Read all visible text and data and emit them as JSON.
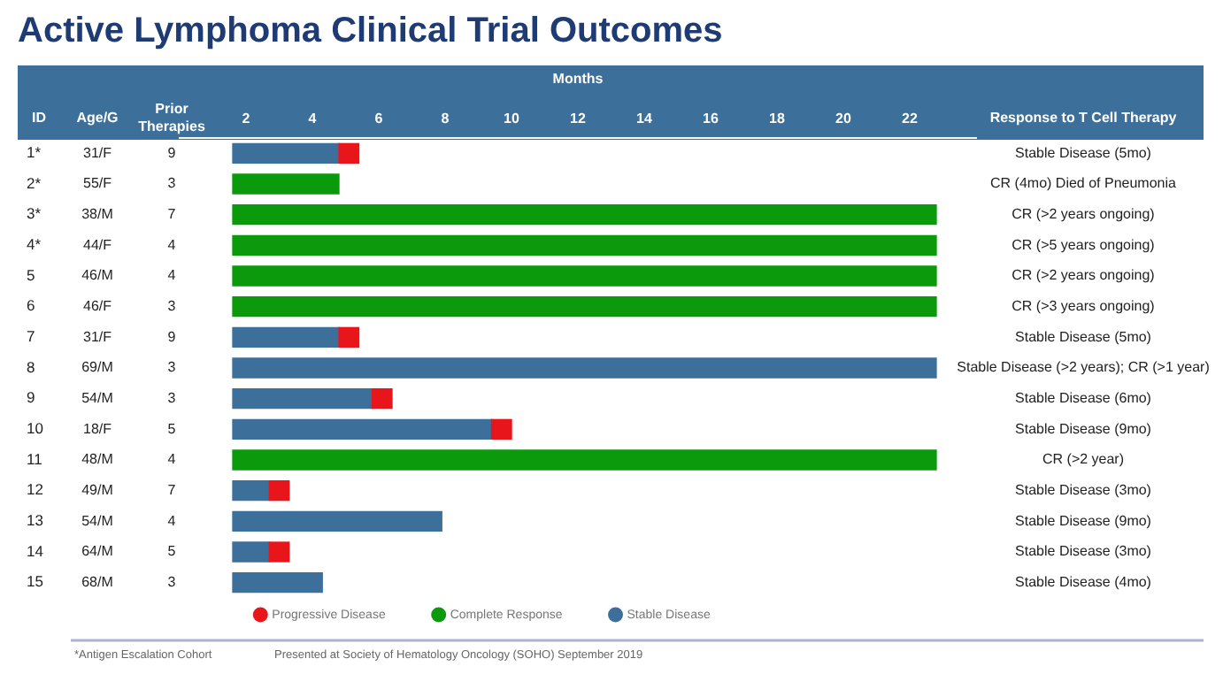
{
  "chart_data": {
    "type": "bar",
    "orientation": "horizontal",
    "title": "Active Lymphoma Clinical Trial Outcomes",
    "xlabel": "Months",
    "ylabel": "ID",
    "categories": [
      "1*",
      "2*",
      "3*",
      "4*",
      "5",
      "6",
      "7",
      "8",
      "9",
      "10",
      "11",
      "12",
      "13",
      "14",
      "15"
    ],
    "xlim": [
      0,
      24
    ],
    "xticks": [
      2,
      4,
      6,
      8,
      10,
      12,
      14,
      16,
      18,
      20,
      22
    ],
    "grid": false,
    "legend": "bottom",
    "marker": "circle",
    "series": [
      {
        "name": "Progressive Disease",
        "color": "#e8161b",
        "base": [
          4.8,
          null,
          null,
          null,
          null,
          null,
          4.8,
          null,
          5.8,
          9.4,
          null,
          2.7,
          null,
          2.7,
          null
        ],
        "values": [
          0.6,
          null,
          null,
          null,
          null,
          null,
          0.6,
          null,
          0.6,
          0.6,
          null,
          0.6,
          null,
          0.6,
          null
        ]
      },
      {
        "name": "Complete Response",
        "color": "#0b9a0b",
        "base": [
          null,
          1.6,
          1.6,
          1.6,
          1.6,
          1.6,
          null,
          null,
          null,
          null,
          1.6,
          null,
          null,
          null,
          null
        ],
        "values": [
          null,
          3.2,
          21.2,
          21.2,
          21.2,
          21.2,
          null,
          null,
          null,
          null,
          21.2,
          null,
          null,
          null,
          null
        ]
      },
      {
        "name": "Stable Disease",
        "color": "#3d6f9b",
        "base": [
          1.6,
          null,
          null,
          null,
          null,
          null,
          1.6,
          1.6,
          1.6,
          1.6,
          null,
          1.6,
          1.6,
          1.6,
          1.6
        ],
        "values": [
          3.2,
          null,
          null,
          null,
          null,
          null,
          3.2,
          21.2,
          4.2,
          7.8,
          null,
          1.1,
          6.3,
          1.1,
          2.7
        ]
      }
    ],
    "annotations": [
      "Age/G",
      "Prior Therapies",
      "Response to T Cell Therapy",
      "31/F",
      "9",
      "Stable Disease (5mo)",
      "55/F",
      "3",
      "CR (4mo) Died of Pneumonia",
      "38/M",
      "7",
      "CR (>2 years ongoing)",
      "44/F",
      "4",
      "CR (>5 years ongoing)",
      "46/M",
      "4",
      "CR (>2 years ongoing)",
      "46/F",
      "3",
      "CR (>3 years ongoing)",
      "31/F",
      "9",
      "Stable Disease (5mo)",
      "69/M",
      "3",
      "Stable Disease (>2 years); CR (>1 year)",
      "54/M",
      "3",
      "Stable Disease (6mo)",
      "18/F",
      "5",
      "Stable Disease (9mo)",
      "48/M",
      "4",
      "CR (>2 year)",
      "49/M",
      "7",
      "Stable Disease (3mo)",
      "54/M",
      "4",
      "Stable Disease (9mo)",
      "64/M",
      "5",
      "Stable Disease (3mo)",
      "68/M",
      "3",
      "Stable Disease (4mo)",
      "*Antigen Escalation Cohort",
      "Presented at Society of Hematology Oncology (SOHO) September 2019"
    ]
  }
}
